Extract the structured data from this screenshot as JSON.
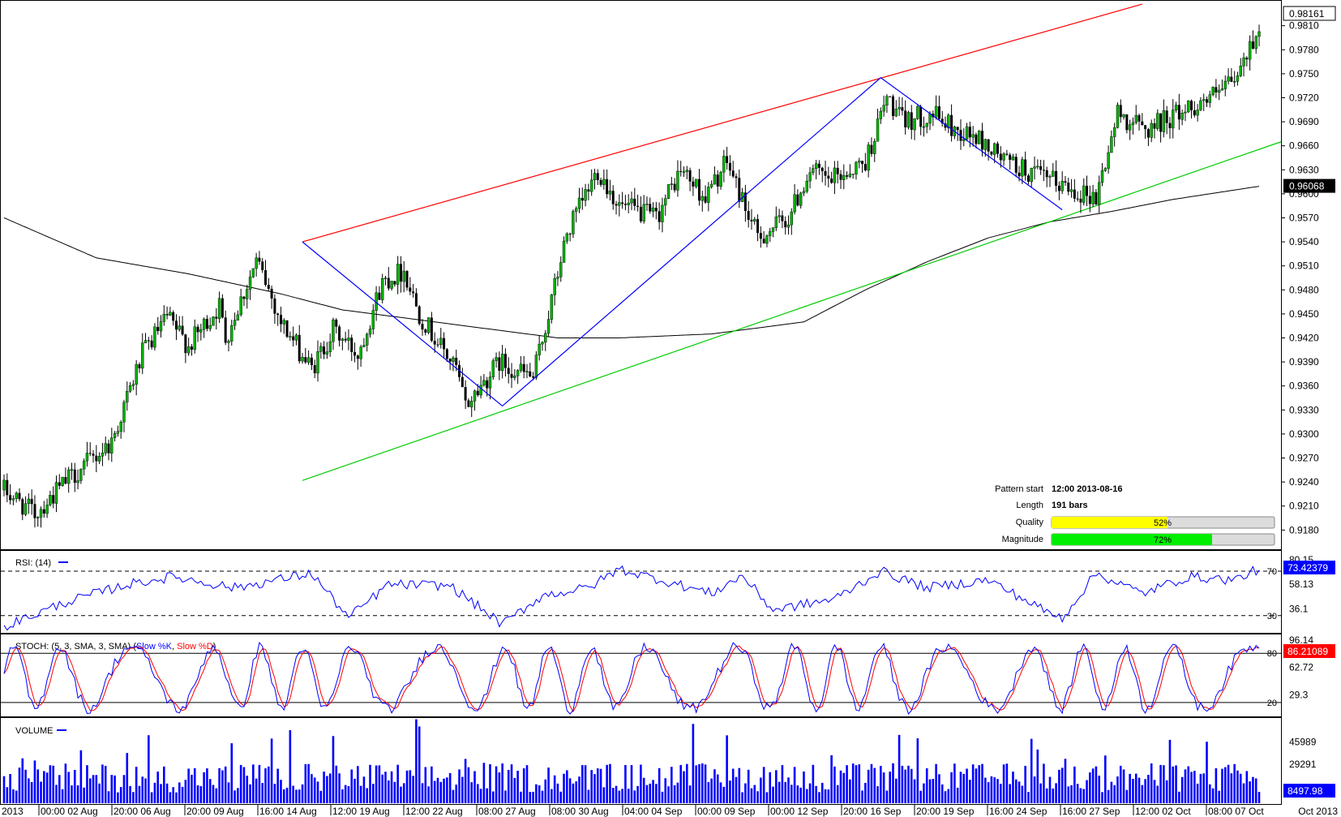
{
  "chart_data": {
    "type": "candlestick",
    "price_axis": {
      "ticks": [
        "0.9180",
        "0.9210",
        "0.9240",
        "0.9270",
        "0.9300",
        "0.9330",
        "0.9360",
        "0.9390",
        "0.9420",
        "0.9450",
        "0.9480",
        "0.9510",
        "0.9540",
        "0.9570",
        "0.9600",
        "0.9630",
        "0.9660",
        "0.9690",
        "0.9720",
        "0.9750",
        "0.9780",
        "0.9810"
      ],
      "range": [
        0.9157,
        0.9834
      ],
      "last_price_label": "0.98161",
      "ma_label": "0.96068"
    },
    "time_axis": {
      "labels": [
        "2013",
        "00:00 02 Aug",
        "20:00 06 Aug",
        "20:00 09 Aug",
        "16:00 14 Aug",
        "12:00 19 Aug",
        "12:00 22 Aug",
        "08:00 27 Aug",
        "08:00 30 Aug",
        "04:00 04 Sep",
        "00:00 09 Sep",
        "00:00 12 Sep",
        "20:00 16 Sep",
        "20:00 19 Sep",
        "16:00 24 Sep",
        "16:00 27 Sep",
        "12:00 02 Oct",
        "08:00 07 Oct",
        "Oct 2013"
      ]
    },
    "candles": {
      "anchors_index": [
        0,
        10,
        20,
        35,
        45,
        53,
        60,
        70,
        72,
        82,
        85,
        90,
        100,
        107,
        115,
        123,
        130,
        135,
        147,
        150,
        161,
        172,
        177,
        183,
        193,
        200,
        212,
        220,
        228,
        235,
        245,
        255,
        262,
        268,
        280,
        287,
        292,
        302,
        309,
        316,
        326,
        334,
        345,
        355,
        362,
        371,
        381,
        395,
        401,
        408
      ],
      "anchors_price": [
        0.923,
        0.92,
        0.924,
        0.929,
        0.94,
        0.9445,
        0.941,
        0.946,
        0.942,
        0.9515,
        0.949,
        0.944,
        0.938,
        0.943,
        0.94,
        0.949,
        0.9505,
        0.945,
        0.938,
        0.9335,
        0.939,
        0.937,
        0.945,
        0.955,
        0.963,
        0.9585,
        0.957,
        0.963,
        0.9595,
        0.964,
        0.9545,
        0.957,
        0.963,
        0.9615,
        0.964,
        0.972,
        0.969,
        0.97,
        0.968,
        0.967,
        0.964,
        0.9625,
        0.961,
        0.9595,
        0.97,
        0.968,
        0.97,
        0.9725,
        0.9745,
        0.981
      ],
      "count": 409
    },
    "moving_average": {
      "points_index": [
        0,
        30,
        60,
        90,
        110,
        140,
        160,
        180,
        200,
        230,
        260,
        280,
        300,
        320,
        340,
        360,
        380,
        409
      ],
      "points_price": [
        0.957,
        0.952,
        0.95,
        0.9475,
        0.9455,
        0.944,
        0.943,
        0.942,
        0.942,
        0.9425,
        0.944,
        0.948,
        0.9515,
        0.9545,
        0.9565,
        0.9578,
        0.9593,
        0.961
      ]
    },
    "pattern": {
      "zigzag_index": [
        97,
        162,
        285,
        344
      ],
      "zigzag_price": [
        0.954,
        0.9335,
        0.9745,
        0.958
      ],
      "resistance": {
        "from_index": 97,
        "from_price": 0.954,
        "to_index": 370,
        "to_price": 0.9837
      },
      "support": {
        "from_index": 97,
        "from_price": 0.9242,
        "to_index": 409,
        "to_price": 0.9665
      }
    },
    "info": {
      "pattern_start_label": "Pattern start",
      "pattern_start_value": "12:00 2013-08-16",
      "length_label": "Length",
      "length_value": "191 bars",
      "quality_label": "Quality",
      "quality_value": 0.52,
      "quality_text": "52%",
      "magnitude_label": "Magnitude",
      "magnitude_value": 0.72,
      "magnitude_text": "72%"
    },
    "rsi": {
      "title": "RSI: (14)",
      "current": "73.42379",
      "ticks": [
        "80.15",
        "58.13",
        "36.1"
      ],
      "levels": [
        "70",
        "30"
      ],
      "range": [
        16,
        86
      ],
      "anchors_index": [
        0,
        20,
        40,
        55,
        75,
        100,
        112,
        125,
        145,
        162,
        175,
        190,
        200,
        230,
        240,
        250,
        270,
        285,
        300,
        320,
        340,
        344,
        355,
        370,
        385,
        400,
        409
      ],
      "anchors_value": [
        20,
        42,
        58,
        65,
        55,
        68,
        28,
        58,
        57,
        22,
        48,
        55,
        72,
        50,
        66,
        35,
        45,
        70,
        55,
        62,
        32,
        28,
        68,
        50,
        65,
        62,
        73.4
      ]
    },
    "stoch": {
      "title": "STOCH: (5, 3, SMA, 3, SMA)",
      "series_k_label": "Slow %K",
      "series_d_label": "Slow %D",
      "current": "86.21089",
      "ticks": [
        "96.14",
        "62.72",
        "29.3"
      ],
      "levels": [
        "80",
        "20"
      ],
      "range": [
        5,
        100
      ],
      "k_color": "#0000ff",
      "d_color": "#ff0000"
    },
    "volume": {
      "title": "VOLUME",
      "current": "8497.98",
      "ticks": [
        "45989",
        "29291"
      ],
      "range": [
        0,
        62000
      ]
    },
    "colors": {
      "up_candle": "#00b000",
      "down_candle": "#000000",
      "resistance": "#ff0000",
      "support": "#00cc00",
      "zigzag": "#0000ff",
      "moving_average": "#000000",
      "rsi_line": "#0000ff",
      "volume_bar": "#0000ff",
      "quality_bar": "#ffff00",
      "magnitude_bar": "#00ee00"
    }
  }
}
